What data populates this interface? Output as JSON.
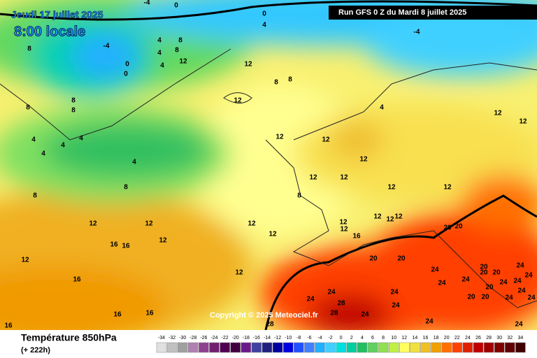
{
  "header": {
    "date": "Jeudi 17 juillet 2025",
    "time": "8:00 locale",
    "run": "Run GFS 0 Z du Mardi 8 juillet 2025",
    "copyright": "Copyright © 2025 Meteociel.fr"
  },
  "footer": {
    "title": "Température 850hPa",
    "lead": "(+ 222h)"
  },
  "legend": {
    "values": [
      -34,
      -32,
      -30,
      -28,
      -26,
      -24,
      -22,
      -20,
      -18,
      -16,
      -14,
      -12,
      -10,
      -8,
      -6,
      -4,
      -2,
      0,
      2,
      4,
      6,
      8,
      10,
      12,
      14,
      16,
      18,
      20,
      22,
      24,
      26,
      28,
      30,
      32,
      34
    ],
    "colors": [
      "#e0e0e0",
      "#c0c0c0",
      "#a0a0a0",
      "#b080b0",
      "#904090",
      "#702070",
      "#500050",
      "#400040",
      "#6a1a8a",
      "#4040a0",
      "#202080",
      "#0000a0",
      "#0000e0",
      "#2050ff",
      "#4080ff",
      "#20b0ff",
      "#40d0ff",
      "#00e0e0",
      "#00d0a0",
      "#20c060",
      "#60d060",
      "#90e050",
      "#c0f040",
      "#ffff60",
      "#f0e040",
      "#f0c020",
      "#f0a000",
      "#ff7000",
      "#ff4000",
      "#e02000",
      "#c00000",
      "#a00000",
      "#800000",
      "#600000",
      "#400000"
    ]
  },
  "map": {
    "contour_labels": [
      -4,
      0,
      0,
      4,
      -4,
      -4,
      0,
      0,
      4,
      4,
      8,
      8,
      12,
      4,
      8,
      12,
      8,
      8,
      12,
      8,
      8,
      8,
      4,
      4,
      4,
      4,
      4,
      8,
      8,
      12,
      12,
      12,
      12,
      8,
      12,
      4,
      12,
      12,
      12,
      12,
      12,
      12,
      12,
      12,
      12,
      12,
      16,
      12,
      12,
      12,
      12,
      16,
      16,
      12,
      16,
      12,
      20,
      20,
      20,
      20,
      24,
      20,
      20,
      20,
      24,
      24,
      24,
      24,
      20,
      24,
      24,
      24,
      24,
      20,
      20,
      24,
      24,
      24,
      24,
      28,
      24,
      28,
      24,
      28,
      16,
      16,
      16,
      24,
      24
    ]
  }
}
